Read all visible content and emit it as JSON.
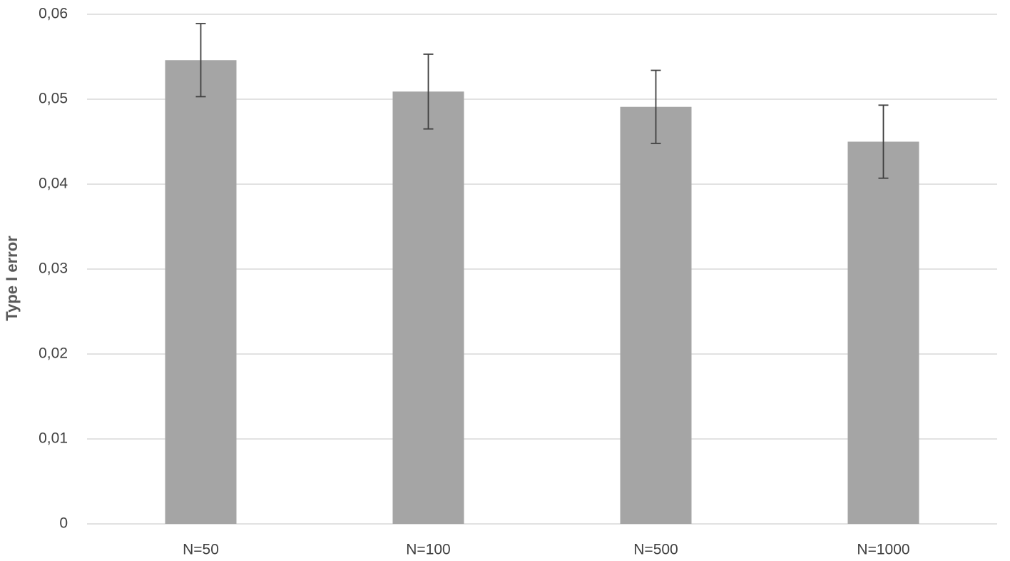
{
  "chart_data": {
    "type": "bar",
    "y_label": "Type I error",
    "categories": [
      "N=50",
      "N=100",
      "N=500",
      "N=1000"
    ],
    "values": [
      0.0546,
      0.0509,
      0.0491,
      0.045
    ],
    "errors": [
      0.0043,
      0.0044,
      0.0043,
      0.0043
    ],
    "color": "#a5a5a5",
    "ylim": [
      0,
      0.06
    ],
    "yticks": [
      0,
      {
        "value": 0.01,
        "label": "0,01"
      },
      {
        "value": 0.02,
        "label": "0,02"
      },
      {
        "value": 0.03,
        "label": "0,03"
      },
      {
        "value": 0.04,
        "label": "0,04"
      },
      {
        "value": 0.05,
        "label": "0,05"
      },
      {
        "value": 0.06,
        "label": "0,06"
      }
    ],
    "grid": true
  }
}
